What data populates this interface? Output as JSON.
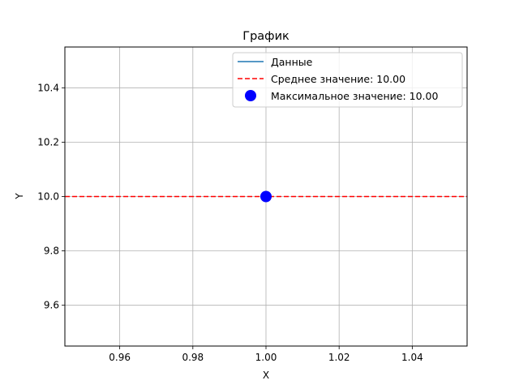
{
  "chart_data": {
    "type": "line",
    "title": "График",
    "xlabel": "X",
    "ylabel": "Y",
    "xlim": [
      0.945,
      1.055
    ],
    "ylim": [
      9.45,
      10.55
    ],
    "xticks": [
      0.96,
      0.98,
      1.0,
      1.02,
      1.04
    ],
    "xtick_labels": [
      "0.96",
      "0.98",
      "1.00",
      "1.02",
      "1.04"
    ],
    "yticks": [
      9.6,
      9.8,
      10.0,
      10.2,
      10.4
    ],
    "ytick_labels": [
      "9.6",
      "9.8",
      "10.0",
      "10.2",
      "10.4"
    ],
    "grid": true,
    "legend_position": "top-right",
    "series": [
      {
        "name": "Данные",
        "type": "line",
        "color": "#1f77b4",
        "x": [
          1.0
        ],
        "y": [
          10.0
        ]
      },
      {
        "name": "Среднее значение: 10.00",
        "type": "hline",
        "color": "#ff0000",
        "style": "dashed",
        "y": 10.0
      },
      {
        "name": "Максимальное значение: 10.00",
        "type": "scatter",
        "color": "#0000ff",
        "x": [
          1.0
        ],
        "y": [
          10.0
        ]
      }
    ]
  }
}
